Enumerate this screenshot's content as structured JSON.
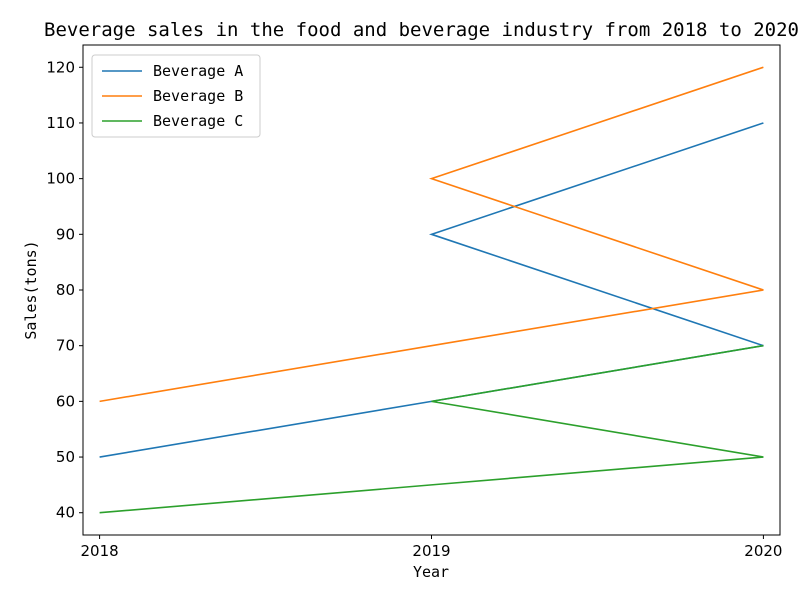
{
  "chart_data": {
    "type": "line",
    "title": "Beverage sales in the food and beverage industry from 2018 to 2020",
    "xlabel": "Year",
    "ylabel": "Sales(tons)",
    "x": [
      2018,
      2019,
      2020,
      2019,
      2020
    ],
    "x_tick_labels": [
      "2018",
      "2019",
      "2020"
    ],
    "y_ticks": [
      40,
      50,
      60,
      70,
      80,
      90,
      100,
      110,
      120
    ],
    "ylim": [
      36,
      124
    ],
    "xlim": [
      2017.95,
      2020.05
    ],
    "grid": false,
    "legend_position": "top-left",
    "series": [
      {
        "name": "Beverage A",
        "color": "#1f77b4",
        "values": [
          50,
          60,
          70,
          90,
          110
        ]
      },
      {
        "name": "Beverage B",
        "color": "#ff7f0e",
        "values": [
          60,
          70,
          80,
          100,
          120
        ]
      },
      {
        "name": "Beverage C",
        "color": "#2ca02c",
        "values": [
          40,
          45,
          50,
          60,
          70
        ]
      }
    ]
  }
}
